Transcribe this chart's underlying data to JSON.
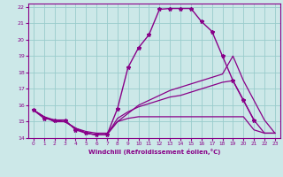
{
  "xlabel": "Windchill (Refroidissement éolien,°C)",
  "xlim": [
    -0.5,
    23.5
  ],
  "ylim": [
    14,
    22.2
  ],
  "yticks": [
    14,
    15,
    16,
    17,
    18,
    19,
    20,
    21,
    22
  ],
  "xticks": [
    0,
    1,
    2,
    3,
    4,
    5,
    6,
    7,
    8,
    9,
    10,
    11,
    12,
    13,
    14,
    15,
    16,
    17,
    18,
    19,
    20,
    21,
    22,
    23
  ],
  "bg_color": "#cce8e8",
  "grid_color": "#99cccc",
  "line_color": "#880088",
  "line1_x": [
    0,
    1,
    2,
    3,
    4,
    5,
    6,
    7,
    8,
    9,
    10,
    11,
    12,
    13,
    14,
    15,
    16,
    17,
    18,
    19,
    20,
    21
  ],
  "line1_y": [
    15.7,
    15.2,
    15.1,
    15.1,
    14.5,
    14.3,
    14.2,
    14.2,
    15.8,
    18.3,
    19.5,
    20.3,
    21.85,
    21.9,
    21.9,
    21.9,
    21.1,
    20.5,
    19.0,
    17.5,
    16.3,
    15.1
  ],
  "line2_x": [
    0,
    1,
    2,
    3,
    4,
    5,
    6,
    7,
    8,
    9,
    10,
    11,
    12,
    13,
    14,
    15,
    16,
    17,
    18,
    19,
    20,
    21,
    22,
    23
  ],
  "line2_y": [
    15.7,
    15.3,
    15.1,
    15.0,
    14.6,
    14.4,
    14.3,
    14.3,
    15.0,
    15.5,
    16.0,
    16.3,
    16.6,
    16.9,
    17.1,
    17.3,
    17.5,
    17.7,
    17.9,
    19.0,
    17.5,
    16.3,
    15.1,
    14.3
  ],
  "line3_x": [
    0,
    1,
    2,
    3,
    4,
    5,
    6,
    7,
    8,
    9,
    10,
    11,
    12,
    13,
    14,
    15,
    16,
    17,
    18,
    19,
    20,
    21,
    22,
    23
  ],
  "line3_y": [
    15.7,
    15.3,
    15.0,
    15.0,
    14.6,
    14.3,
    14.2,
    14.2,
    15.0,
    15.2,
    15.3,
    15.3,
    15.3,
    15.3,
    15.3,
    15.3,
    15.3,
    15.3,
    15.3,
    15.3,
    15.3,
    14.5,
    14.3,
    14.3
  ],
  "line4_x": [
    0,
    1,
    2,
    3,
    4,
    5,
    6,
    7,
    8,
    9,
    10,
    11,
    12,
    13,
    14,
    15,
    16,
    17,
    18,
    19,
    20,
    21,
    22,
    23
  ],
  "line4_y": [
    15.7,
    15.3,
    15.0,
    15.0,
    14.6,
    14.3,
    14.2,
    14.2,
    15.2,
    15.6,
    15.9,
    16.1,
    16.3,
    16.5,
    16.6,
    16.8,
    17.0,
    17.2,
    17.4,
    17.5,
    16.3,
    15.1,
    14.3,
    14.3
  ]
}
